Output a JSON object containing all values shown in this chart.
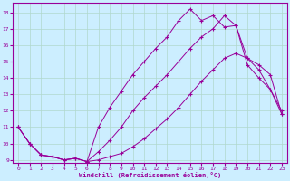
{
  "xlabel": "Windchill (Refroidissement éolien,°C)",
  "bg_color": "#cceeff",
  "line_color": "#990099",
  "xlim": [
    -0.5,
    23.5
  ],
  "ylim": [
    8.8,
    18.6
  ],
  "yticks": [
    9,
    10,
    11,
    12,
    13,
    14,
    15,
    16,
    17,
    18
  ],
  "xticks": [
    0,
    1,
    2,
    3,
    4,
    5,
    6,
    7,
    8,
    9,
    10,
    11,
    12,
    13,
    14,
    15,
    16,
    17,
    18,
    19,
    20,
    21,
    22,
    23
  ],
  "line1_x": [
    0,
    1,
    2,
    3,
    4,
    5,
    6,
    7,
    8,
    9,
    10,
    11,
    12,
    13,
    14,
    15,
    16,
    17,
    18,
    19,
    20,
    21,
    22,
    23
  ],
  "line1_y": [
    11.0,
    10.0,
    9.3,
    9.2,
    9.0,
    9.1,
    8.9,
    9.0,
    9.2,
    9.4,
    9.8,
    10.3,
    10.9,
    11.5,
    12.2,
    13.0,
    13.8,
    14.5,
    15.2,
    15.5,
    15.2,
    14.5,
    13.3,
    12.0
  ],
  "line2_x": [
    0,
    1,
    2,
    3,
    4,
    5,
    6,
    7,
    8,
    9,
    10,
    11,
    12,
    13,
    14,
    15,
    16,
    17,
    18,
    19,
    20,
    21,
    22,
    23
  ],
  "line2_y": [
    11.0,
    10.0,
    9.3,
    9.2,
    9.0,
    9.1,
    8.9,
    11.0,
    12.2,
    13.2,
    14.2,
    15.0,
    15.8,
    16.5,
    17.5,
    18.2,
    17.5,
    17.8,
    17.1,
    17.2,
    14.8,
    14.0,
    13.3,
    11.8
  ],
  "line3_x": [
    0,
    1,
    2,
    3,
    4,
    5,
    6,
    7,
    8,
    9,
    10,
    11,
    12,
    13,
    14,
    15,
    16,
    17,
    18,
    19,
    20,
    21,
    22,
    23
  ],
  "line3_y": [
    11.0,
    10.0,
    9.3,
    9.2,
    9.0,
    9.1,
    8.9,
    9.5,
    10.2,
    11.0,
    12.0,
    12.8,
    13.5,
    14.2,
    15.0,
    15.8,
    16.5,
    17.0,
    17.8,
    17.2,
    15.2,
    14.8,
    14.2,
    11.8
  ]
}
